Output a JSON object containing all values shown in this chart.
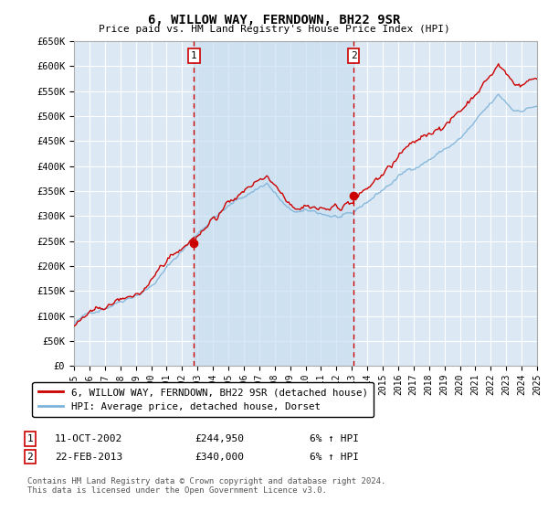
{
  "title": "6, WILLOW WAY, FERNDOWN, BH22 9SR",
  "subtitle": "Price paid vs. HM Land Registry's House Price Index (HPI)",
  "background_color": "#ffffff",
  "plot_bg_color": "#dce9f5",
  "grid_color": "#ffffff",
  "purchase1_year": 2002.78,
  "purchase1_price": 244950,
  "purchase2_year": 2013.12,
  "purchase2_price": 340000,
  "line_property_color": "#cc0000",
  "line_hpi_color": "#7fb3d9",
  "legend_property": "6, WILLOW WAY, FERNDOWN, BH22 9SR (detached house)",
  "legend_hpi": "HPI: Average price, detached house, Dorset",
  "purchase1_date": "11-OCT-2002",
  "purchase1_amount": "£244,950",
  "purchase1_hpi": "6% ↑ HPI",
  "purchase2_date": "22-FEB-2013",
  "purchase2_amount": "£340,000",
  "purchase2_hpi": "6% ↑ HPI",
  "footer": "Contains HM Land Registry data © Crown copyright and database right 2024.\nThis data is licensed under the Open Government Licence v3.0.",
  "ytick_labels": [
    "£0",
    "£50K",
    "£100K",
    "£150K",
    "£200K",
    "£250K",
    "£300K",
    "£350K",
    "£400K",
    "£450K",
    "£500K",
    "£550K",
    "£600K",
    "£650K"
  ],
  "yticks": [
    0,
    50000,
    100000,
    150000,
    200000,
    250000,
    300000,
    350000,
    400000,
    450000,
    500000,
    550000,
    600000,
    650000
  ]
}
